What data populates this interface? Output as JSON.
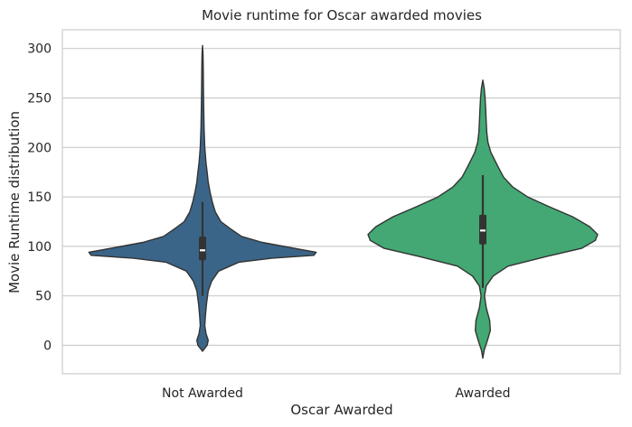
{
  "chart_data": {
    "type": "violin",
    "title": "Movie runtime for Oscar awarded movies",
    "xlabel": "Oscar Awarded",
    "ylabel": "Movie Runtime distribution",
    "categories": [
      "Not Awarded",
      "Awarded"
    ],
    "ylim": [
      -28,
      322
    ],
    "yticks": [
      0,
      50,
      100,
      150,
      200,
      250,
      300
    ],
    "grid": "horizontal",
    "colors": [
      "#3b6588",
      "#43a873"
    ],
    "series": [
      {
        "min": -6,
        "max": 303,
        "q1": 86,
        "median": 96,
        "q3": 110,
        "whisker_low": 50,
        "whisker_high": 145,
        "density": [
          [
            -6,
            0.0
          ],
          [
            0,
            0.04
          ],
          [
            5,
            0.05
          ],
          [
            12,
            0.03
          ],
          [
            20,
            0.02
          ],
          [
            30,
            0.025
          ],
          [
            42,
            0.035
          ],
          [
            55,
            0.05
          ],
          [
            65,
            0.08
          ],
          [
            75,
            0.14
          ],
          [
            84,
            0.32
          ],
          [
            88,
            0.6
          ],
          [
            91,
            0.97
          ],
          [
            94,
            0.99
          ],
          [
            98,
            0.8
          ],
          [
            104,
            0.52
          ],
          [
            110,
            0.34
          ],
          [
            118,
            0.24
          ],
          [
            125,
            0.16
          ],
          [
            135,
            0.11
          ],
          [
            145,
            0.085
          ],
          [
            155,
            0.065
          ],
          [
            165,
            0.05
          ],
          [
            175,
            0.04
          ],
          [
            185,
            0.03
          ],
          [
            200,
            0.02
          ],
          [
            220,
            0.013
          ],
          [
            240,
            0.01
          ],
          [
            260,
            0.008
          ],
          [
            280,
            0.006
          ],
          [
            295,
            0.004
          ],
          [
            303,
            0.0
          ]
        ]
      },
      {
        "min": -13,
        "max": 268,
        "q1": 102,
        "median": 116,
        "q3": 132,
        "whisker_low": 58,
        "whisker_high": 172,
        "density": [
          [
            -13,
            0.0
          ],
          [
            -5,
            0.012
          ],
          [
            5,
            0.04
          ],
          [
            15,
            0.065
          ],
          [
            25,
            0.06
          ],
          [
            38,
            0.03
          ],
          [
            50,
            0.015
          ],
          [
            60,
            0.03
          ],
          [
            70,
            0.09
          ],
          [
            80,
            0.22
          ],
          [
            90,
            0.56
          ],
          [
            98,
            0.86
          ],
          [
            106,
            0.98
          ],
          [
            112,
            1.0
          ],
          [
            120,
            0.93
          ],
          [
            130,
            0.78
          ],
          [
            140,
            0.58
          ],
          [
            150,
            0.39
          ],
          [
            160,
            0.26
          ],
          [
            170,
            0.18
          ],
          [
            180,
            0.135
          ],
          [
            188,
            0.1
          ],
          [
            195,
            0.07
          ],
          [
            205,
            0.045
          ],
          [
            215,
            0.035
          ],
          [
            225,
            0.03
          ],
          [
            238,
            0.025
          ],
          [
            250,
            0.02
          ],
          [
            260,
            0.012
          ],
          [
            268,
            0.0
          ]
        ]
      }
    ]
  }
}
